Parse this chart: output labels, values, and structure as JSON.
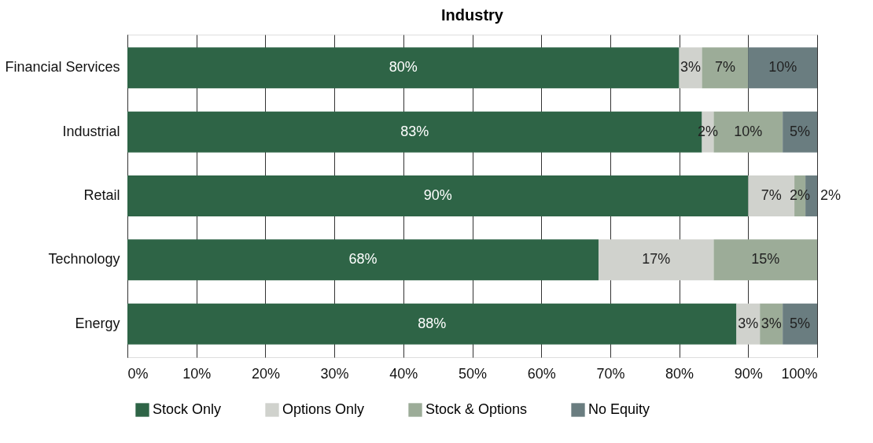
{
  "chart_data": {
    "type": "bar",
    "orientation": "horizontal",
    "stacked": true,
    "title": "Industry",
    "categories": [
      "Financial Services",
      "Industrial",
      "Retail",
      "Technology",
      "Energy"
    ],
    "series": [
      {
        "name": "Stock Only",
        "color": "#2e6446",
        "values": [
          80,
          83.3,
          90,
          68.3,
          88.3
        ],
        "value_labels": [
          "80%",
          "83%",
          "90%",
          "68%",
          "88%"
        ]
      },
      {
        "name": "Options Only",
        "color": "#d0d2cd",
        "values": [
          3.3,
          1.7,
          6.7,
          16.7,
          3.4
        ],
        "value_labels": [
          "3%",
          "2%",
          "7%",
          "17%",
          "3%"
        ]
      },
      {
        "name": "Stock & Options",
        "color": "#9cac98",
        "values": [
          6.7,
          10,
          1.6,
          15,
          3.3
        ],
        "value_labels": [
          "7%",
          "10%",
          "2%",
          "15%",
          "3%"
        ]
      },
      {
        "name": "No Equity",
        "color": "#6a7d80",
        "values": [
          10,
          5,
          1.7,
          null,
          5
        ],
        "value_labels": [
          "10%",
          "5%",
          "2%",
          null,
          "5%"
        ]
      }
    ],
    "xlim": [
      0,
      100
    ],
    "xticks": [
      {
        "value": 0,
        "label": "0%"
      },
      {
        "value": 10,
        "label": "10%"
      },
      {
        "value": 20,
        "label": "20%"
      },
      {
        "value": 30,
        "label": "30%"
      },
      {
        "value": 40,
        "label": "40%"
      },
      {
        "value": 50,
        "label": "50%"
      },
      {
        "value": 60,
        "label": "60%"
      },
      {
        "value": 70,
        "label": "70%"
      },
      {
        "value": 80,
        "label": "80%"
      },
      {
        "value": 90,
        "label": "90%"
      },
      {
        "value": 100,
        "label": "100%"
      }
    ],
    "grid": "x",
    "legend": "bottom"
  }
}
